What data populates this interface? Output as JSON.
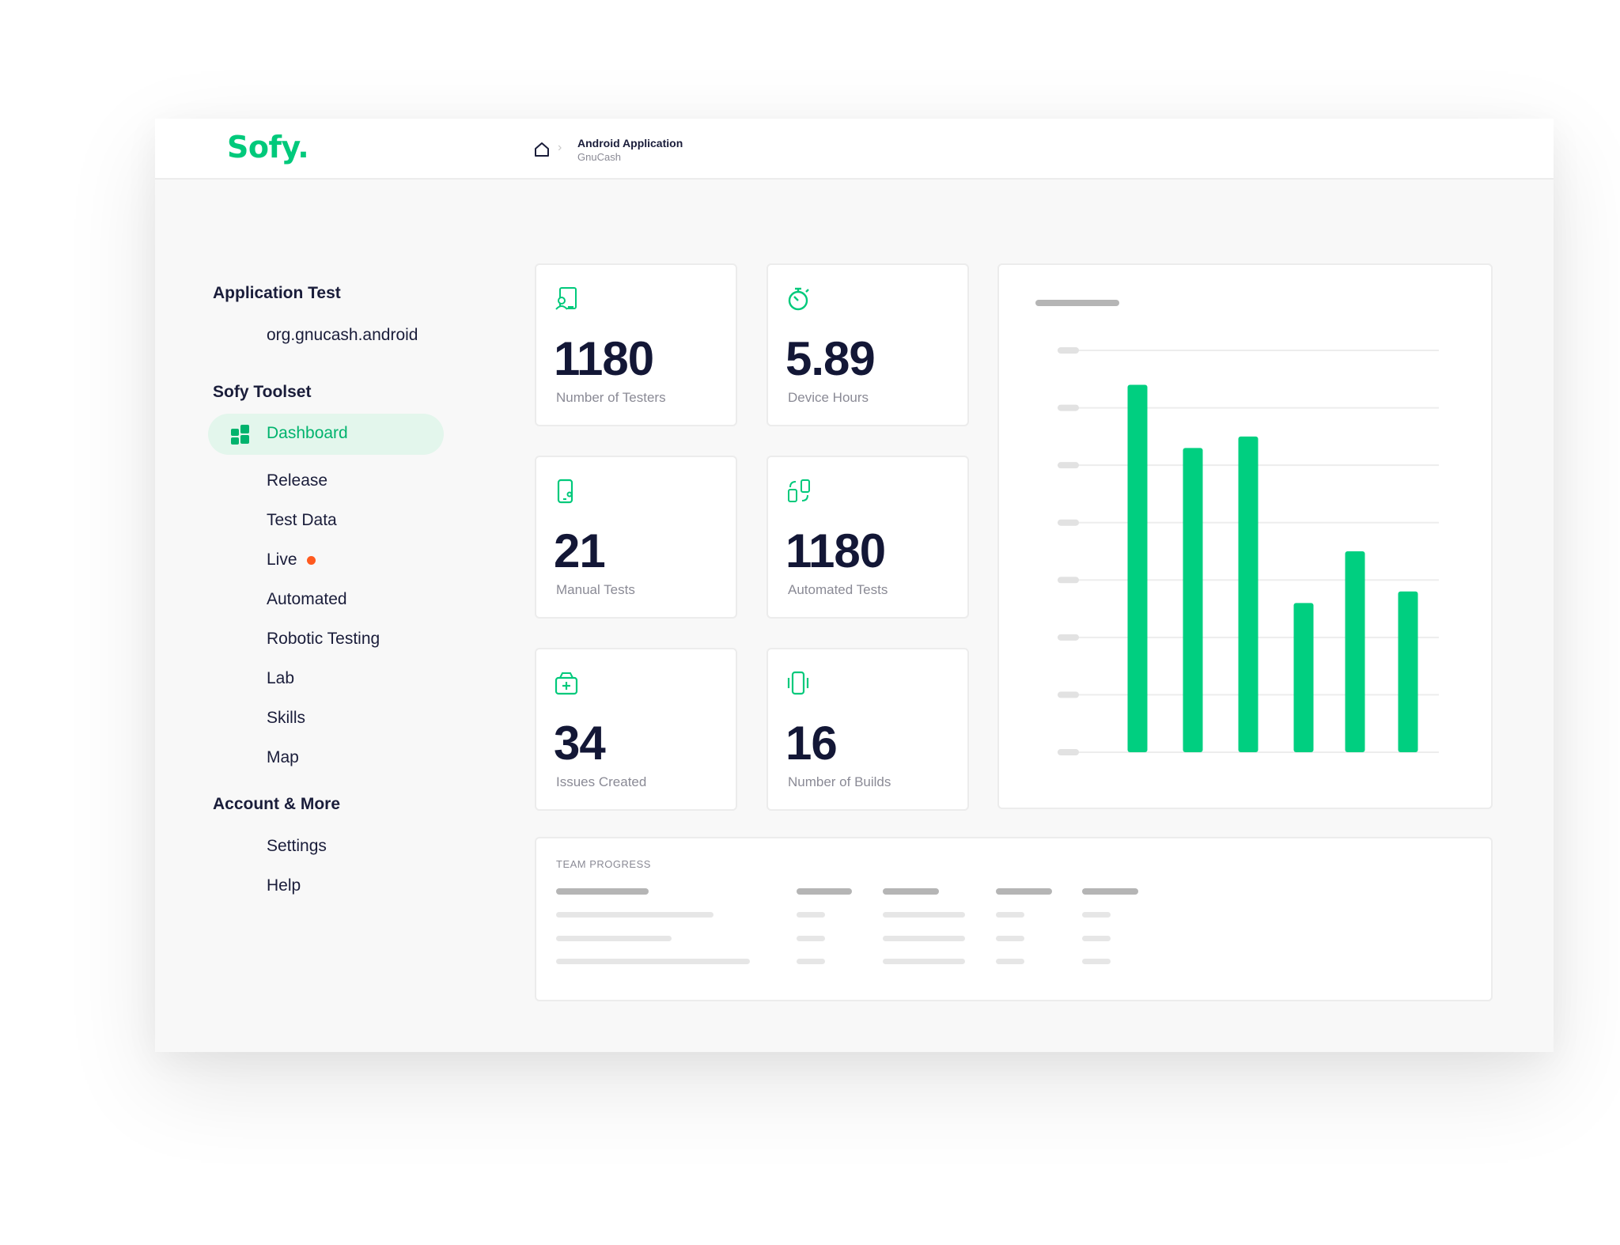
{
  "app": {
    "logo": "Sofy.",
    "breadcrumb": {
      "title": "Android Application",
      "subtitle": "GnuCash"
    }
  },
  "sidebar": {
    "sections": [
      {
        "title": "Application Test",
        "items": [
          "org.gnucash.android"
        ]
      },
      {
        "title": "Sofy Toolset"
      },
      {
        "title": "Account & More",
        "items": [
          "Settings",
          "Help"
        ]
      }
    ],
    "active_item": "Dashboard",
    "toolset_items": [
      "Release",
      "Test Data",
      "Live",
      "Automated",
      "Robotic Testing",
      "Lab",
      "Skills",
      "Map"
    ],
    "live_dot_color": "#ff5a1f"
  },
  "stats": [
    {
      "value": "1180",
      "label": "Number of Testers",
      "icon": "tester-icon"
    },
    {
      "value": "5.89",
      "label": "Device Hours",
      "icon": "stopwatch-icon"
    },
    {
      "value": "21",
      "label": "Manual Tests",
      "icon": "phone-icon"
    },
    {
      "value": "1180",
      "label": "Automated Tests",
      "icon": "automation-icon"
    },
    {
      "value": "34",
      "label": "Issues Created",
      "icon": "issue-box-icon"
    },
    {
      "value": "16",
      "label": "Number of Builds",
      "icon": "device-builds-icon"
    }
  ],
  "chart_data": {
    "type": "bar",
    "categories": [
      "",
      "",
      "",
      "",
      "",
      ""
    ],
    "values": [
      6.4,
      5.3,
      5.5,
      2.6,
      3.5,
      2.8
    ],
    "ylim": [
      0,
      7
    ],
    "grid": true,
    "bar_color": "#00cf80"
  },
  "team_progress": {
    "title": "TEAM PROGRESS"
  },
  "colors": {
    "accent": "#00c97b",
    "text": "#1a1d3a",
    "muted": "#8a8a95"
  }
}
